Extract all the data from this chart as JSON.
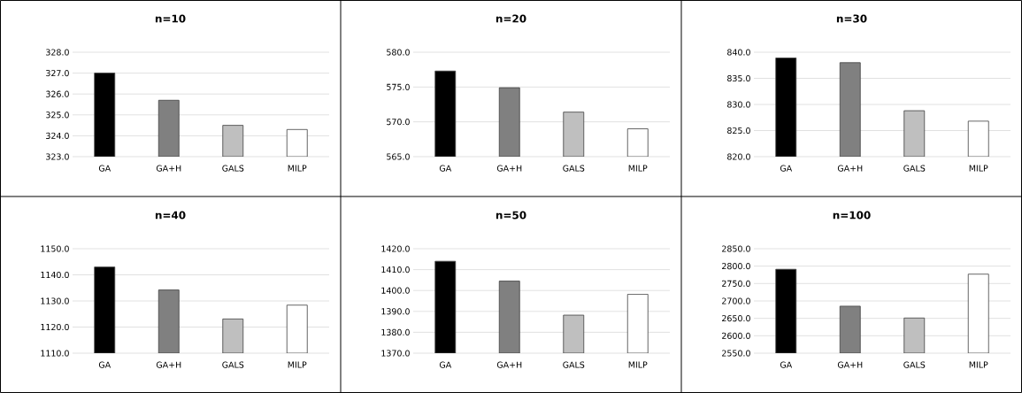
{
  "chart_data": [
    {
      "type": "bar",
      "title": "n=10",
      "categories": [
        "GA",
        "GA+H",
        "GALS",
        "MILP"
      ],
      "values": [
        327.0,
        325.7,
        324.5,
        324.3
      ],
      "colors": [
        "#000000",
        "#808080",
        "#bfbfbf",
        "#ffffff"
      ],
      "ylim": [
        323,
        328
      ],
      "yticks": [
        {
          "value": 323,
          "label": "323.0"
        },
        {
          "value": 324,
          "label": "324.0"
        },
        {
          "value": 325,
          "label": "325.0"
        },
        {
          "value": 326,
          "label": "326.0"
        },
        {
          "value": 327,
          "label": "327.0"
        },
        {
          "value": 328,
          "label": "328.0"
        }
      ],
      "grid": "y"
    },
    {
      "type": "bar",
      "title": "n=20",
      "categories": [
        "GA",
        "GA+H",
        "GALS",
        "MILP"
      ],
      "values": [
        577.3,
        574.9,
        571.4,
        569.0
      ],
      "colors": [
        "#000000",
        "#808080",
        "#bfbfbf",
        "#ffffff"
      ],
      "ylim": [
        565,
        580
      ],
      "yticks": [
        {
          "value": 565,
          "label": "565.0"
        },
        {
          "value": 570,
          "label": "570.0"
        },
        {
          "value": 575,
          "label": "575.0"
        },
        {
          "value": 580,
          "label": "580.0"
        }
      ],
      "grid": "y"
    },
    {
      "type": "bar",
      "title": "n=30",
      "categories": [
        "GA",
        "GA+H",
        "GALS",
        "MILP"
      ],
      "values": [
        838.9,
        838.0,
        828.8,
        826.8
      ],
      "colors": [
        "#000000",
        "#808080",
        "#bfbfbf",
        "#ffffff"
      ],
      "ylim": [
        820,
        840
      ],
      "yticks": [
        {
          "value": 820,
          "label": "820.0"
        },
        {
          "value": 825,
          "label": "825.0"
        },
        {
          "value": 830,
          "label": "830.0"
        },
        {
          "value": 835,
          "label": "835.0"
        },
        {
          "value": 840,
          "label": "840.0"
        }
      ],
      "grid": "y"
    },
    {
      "type": "bar",
      "title": "n=40",
      "categories": [
        "GA",
        "GA+H",
        "GALS",
        "MILP"
      ],
      "values": [
        1143.0,
        1134.2,
        1123.1,
        1128.4
      ],
      "colors": [
        "#000000",
        "#808080",
        "#bfbfbf",
        "#ffffff"
      ],
      "ylim": [
        1110,
        1150
      ],
      "yticks": [
        {
          "value": 1110,
          "label": "1110.0"
        },
        {
          "value": 1120,
          "label": "1120.0"
        },
        {
          "value": 1130,
          "label": "1130.0"
        },
        {
          "value": 1140,
          "label": "1140.0"
        },
        {
          "value": 1150,
          "label": "1150.0"
        }
      ],
      "grid": "y"
    },
    {
      "type": "bar",
      "title": "n=50",
      "categories": [
        "GA",
        "GA+H",
        "GALS",
        "MILP"
      ],
      "values": [
        1414.0,
        1404.5,
        1388.2,
        1398.2
      ],
      "colors": [
        "#000000",
        "#808080",
        "#bfbfbf",
        "#ffffff"
      ],
      "ylim": [
        1370,
        1420
      ],
      "yticks": [
        {
          "value": 1370,
          "label": "1370.0"
        },
        {
          "value": 1380,
          "label": "1380.0"
        },
        {
          "value": 1390,
          "label": "1390.0"
        },
        {
          "value": 1400,
          "label": "1400.0"
        },
        {
          "value": 1410,
          "label": "1410.0"
        },
        {
          "value": 1420,
          "label": "1420.0"
        }
      ],
      "grid": "y"
    },
    {
      "type": "bar",
      "title": "n=100",
      "categories": [
        "GA",
        "GA+H",
        "GALS",
        "MILP"
      ],
      "values": [
        2791,
        2685,
        2651,
        2777
      ],
      "colors": [
        "#000000",
        "#808080",
        "#bfbfbf",
        "#ffffff"
      ],
      "ylim": [
        2550,
        2850
      ],
      "yticks": [
        {
          "value": 2550,
          "label": "2550.0"
        },
        {
          "value": 2600,
          "label": "2600.0"
        },
        {
          "value": 2650,
          "label": "2650.0"
        },
        {
          "value": 2700,
          "label": "2700.0"
        },
        {
          "value": 2750,
          "label": "2750.0"
        },
        {
          "value": 2800,
          "label": "2800.0"
        },
        {
          "value": 2850,
          "label": "2850.0"
        }
      ],
      "grid": "y"
    }
  ]
}
